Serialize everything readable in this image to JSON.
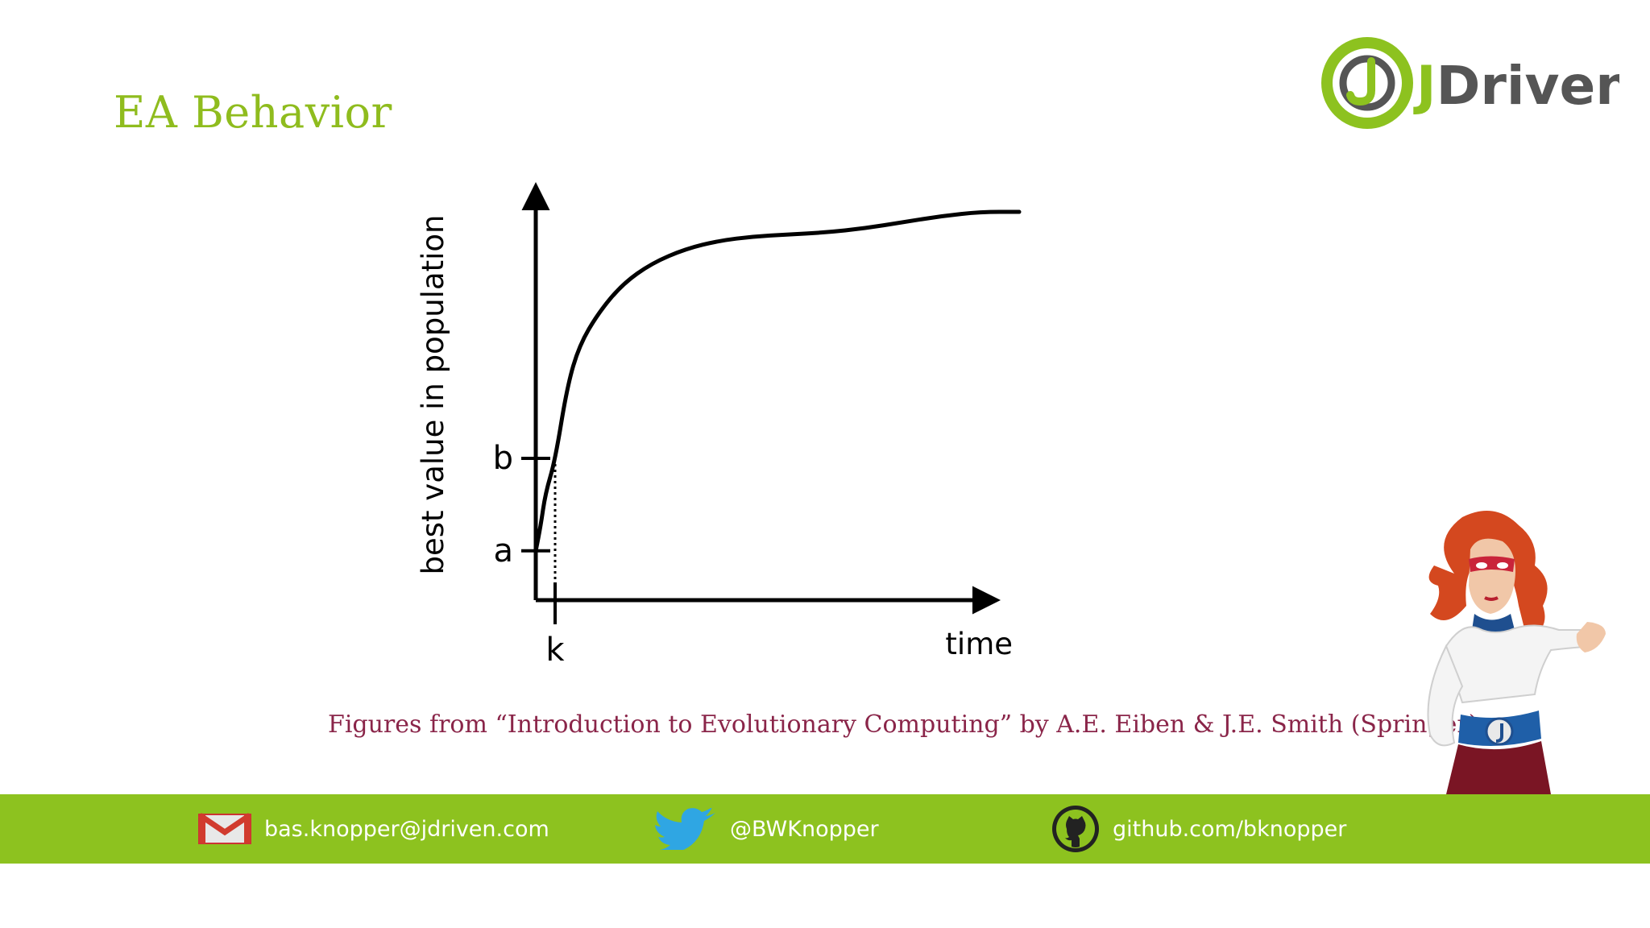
{
  "slide": {
    "title": "EA Behavior",
    "caption": "Figures from “Introduction to Evolutionary Computing” by A.E. Eiben & J.E. Smith (Springer)"
  },
  "logo": {
    "text": "JDriven",
    "accent": "#8dc21f",
    "dark": "#555555"
  },
  "chart_data": {
    "type": "line",
    "title": "",
    "xlabel": "time",
    "ylabel": "best value in population",
    "xticks": [
      "k"
    ],
    "yticks": [
      "a",
      "b"
    ],
    "grid": false,
    "legend": "none",
    "annotations": [
      "dotted vertical line from b down to k"
    ],
    "series": [
      {
        "values": [
          [
            0,
            0.12
          ],
          [
            0.01,
            0.18
          ],
          [
            0.02,
            0.26
          ],
          [
            0.04,
            0.34
          ],
          [
            0.065,
            0.52
          ],
          [
            0.09,
            0.62
          ],
          [
            0.13,
            0.7
          ],
          [
            0.18,
            0.77
          ],
          [
            0.24,
            0.82
          ],
          [
            0.31,
            0.855
          ],
          [
            0.38,
            0.875
          ],
          [
            0.45,
            0.885
          ],
          [
            0.52,
            0.89
          ],
          [
            0.6,
            0.895
          ],
          [
            0.68,
            0.905
          ],
          [
            0.76,
            0.92
          ],
          [
            0.84,
            0.935
          ],
          [
            0.92,
            0.945
          ],
          [
            1.0,
            0.945
          ]
        ]
      }
    ],
    "marks": {
      "a": 0.12,
      "b": 0.345,
      "k": 0.04
    },
    "xlim": [
      0,
      1
    ],
    "ylim": [
      0,
      1
    ]
  },
  "footer": {
    "email": "bas.knopper@jdriven.com",
    "twitter": "@BWKnopper",
    "github": "github.com/bknopper",
    "icons": [
      "gmail-icon",
      "twitter-icon",
      "github-icon"
    ]
  }
}
